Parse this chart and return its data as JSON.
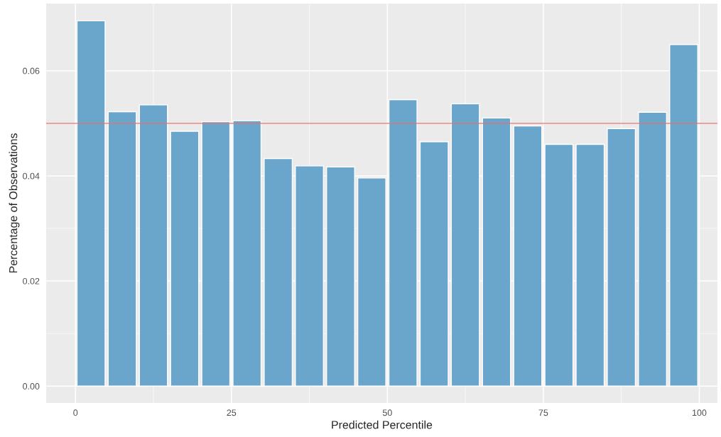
{
  "chart_data": {
    "type": "bar",
    "xlabel": "Predicted Percentile",
    "ylabel": "Percentage of Observations",
    "x": [
      2.5,
      7.5,
      12.5,
      17.5,
      22.5,
      27.5,
      32.5,
      37.5,
      42.5,
      47.5,
      52.5,
      57.5,
      62.5,
      67.5,
      72.5,
      77.5,
      82.5,
      87.5,
      92.5,
      97.5
    ],
    "series": [
      {
        "color": "#6aa5cc",
        "values": [
          0.0695,
          0.0522,
          0.0535,
          0.0485,
          0.0503,
          0.0505,
          0.0433,
          0.0419,
          0.0417,
          0.0396,
          0.0545,
          0.0465,
          0.0537,
          0.051,
          0.0495,
          0.046,
          0.046,
          0.049,
          0.0521,
          0.065
        ]
      }
    ],
    "xlim": [
      -4.7,
      102.9
    ],
    "ylim": [
      -0.0032,
      0.0728
    ],
    "xticks": [
      0,
      25,
      50,
      75,
      100
    ],
    "yticks": [
      {
        "value": 0,
        "label": "0.00"
      },
      {
        "value": 0.02,
        "label": "0.02"
      },
      {
        "value": 0.04,
        "label": "0.04"
      },
      {
        "value": 0.06,
        "label": "0.06"
      }
    ],
    "ref_lines": [
      {
        "axis": "y",
        "value": 0.05,
        "color": "#e8736c"
      }
    ],
    "grid": true
  }
}
